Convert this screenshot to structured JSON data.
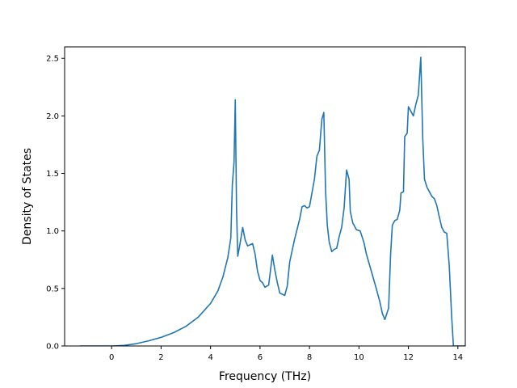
{
  "chart_data": {
    "type": "line",
    "title": "",
    "xlabel": "Frequency (THz)",
    "ylabel": "Density of States",
    "xlim": [
      -1.9,
      14.3
    ],
    "ylim": [
      0.0,
      2.6
    ],
    "xticks": [
      0,
      2,
      4,
      6,
      8,
      10,
      12,
      14
    ],
    "xtick_labels": [
      "0",
      "2",
      "4",
      "6",
      "8",
      "10",
      "12",
      "14"
    ],
    "yticks": [
      0.0,
      0.5,
      1.0,
      1.5,
      2.0,
      2.5
    ],
    "ytick_labels": [
      "0.0",
      "0.5",
      "1.0",
      "1.5",
      "2.0",
      "2.5"
    ],
    "grid": false,
    "legend": "none",
    "series": [
      {
        "color": "#1f77b4",
        "points": [
          [
            -1.25,
            0.0
          ],
          [
            0.0,
            0.0
          ],
          [
            0.5,
            0.005
          ],
          [
            1.0,
            0.02
          ],
          [
            1.5,
            0.045
          ],
          [
            2.0,
            0.075
          ],
          [
            2.5,
            0.115
          ],
          [
            3.0,
            0.17
          ],
          [
            3.5,
            0.25
          ],
          [
            4.0,
            0.37
          ],
          [
            4.3,
            0.48
          ],
          [
            4.5,
            0.6
          ],
          [
            4.7,
            0.77
          ],
          [
            4.82,
            0.94
          ],
          [
            4.88,
            1.4
          ],
          [
            4.95,
            1.6
          ],
          [
            5.0,
            2.14
          ],
          [
            5.05,
            1.2
          ],
          [
            5.1,
            0.78
          ],
          [
            5.2,
            0.9
          ],
          [
            5.3,
            1.03
          ],
          [
            5.4,
            0.92
          ],
          [
            5.5,
            0.87
          ],
          [
            5.6,
            0.88
          ],
          [
            5.7,
            0.89
          ],
          [
            5.8,
            0.8
          ],
          [
            5.9,
            0.65
          ],
          [
            6.0,
            0.57
          ],
          [
            6.1,
            0.55
          ],
          [
            6.2,
            0.51
          ],
          [
            6.35,
            0.53
          ],
          [
            6.5,
            0.79
          ],
          [
            6.6,
            0.66
          ],
          [
            6.7,
            0.55
          ],
          [
            6.8,
            0.46
          ],
          [
            7.0,
            0.44
          ],
          [
            7.1,
            0.52
          ],
          [
            7.2,
            0.73
          ],
          [
            7.4,
            0.93
          ],
          [
            7.6,
            1.1
          ],
          [
            7.7,
            1.21
          ],
          [
            7.8,
            1.22
          ],
          [
            7.9,
            1.2
          ],
          [
            8.0,
            1.21
          ],
          [
            8.2,
            1.45
          ],
          [
            8.3,
            1.65
          ],
          [
            8.4,
            1.7
          ],
          [
            8.5,
            1.97
          ],
          [
            8.58,
            2.03
          ],
          [
            8.65,
            1.35
          ],
          [
            8.72,
            1.05
          ],
          [
            8.8,
            0.9
          ],
          [
            8.9,
            0.82
          ],
          [
            9.0,
            0.84
          ],
          [
            9.1,
            0.85
          ],
          [
            9.2,
            0.95
          ],
          [
            9.3,
            1.03
          ],
          [
            9.4,
            1.2
          ],
          [
            9.5,
            1.53
          ],
          [
            9.6,
            1.45
          ],
          [
            9.65,
            1.17
          ],
          [
            9.75,
            1.07
          ],
          [
            9.9,
            1.01
          ],
          [
            10.05,
            1.0
          ],
          [
            10.2,
            0.9
          ],
          [
            10.3,
            0.8
          ],
          [
            10.5,
            0.65
          ],
          [
            10.7,
            0.5
          ],
          [
            10.85,
            0.38
          ],
          [
            10.95,
            0.28
          ],
          [
            11.05,
            0.23
          ],
          [
            11.2,
            0.33
          ],
          [
            11.28,
            0.8
          ],
          [
            11.35,
            1.05
          ],
          [
            11.45,
            1.09
          ],
          [
            11.55,
            1.1
          ],
          [
            11.65,
            1.18
          ],
          [
            11.7,
            1.33
          ],
          [
            11.8,
            1.34
          ],
          [
            11.85,
            1.82
          ],
          [
            11.95,
            1.85
          ],
          [
            12.0,
            2.08
          ],
          [
            12.1,
            2.04
          ],
          [
            12.2,
            2.0
          ],
          [
            12.3,
            2.1
          ],
          [
            12.4,
            2.18
          ],
          [
            12.5,
            2.51
          ],
          [
            12.58,
            1.8
          ],
          [
            12.65,
            1.45
          ],
          [
            12.75,
            1.38
          ],
          [
            12.85,
            1.34
          ],
          [
            12.95,
            1.3
          ],
          [
            13.05,
            1.28
          ],
          [
            13.15,
            1.22
          ],
          [
            13.25,
            1.12
          ],
          [
            13.35,
            1.03
          ],
          [
            13.45,
            0.99
          ],
          [
            13.55,
            0.98
          ],
          [
            13.65,
            0.7
          ],
          [
            13.75,
            0.25
          ],
          [
            13.82,
            0.0
          ],
          [
            13.9,
            0.0
          ],
          [
            14.95,
            0.0
          ]
        ]
      }
    ]
  }
}
